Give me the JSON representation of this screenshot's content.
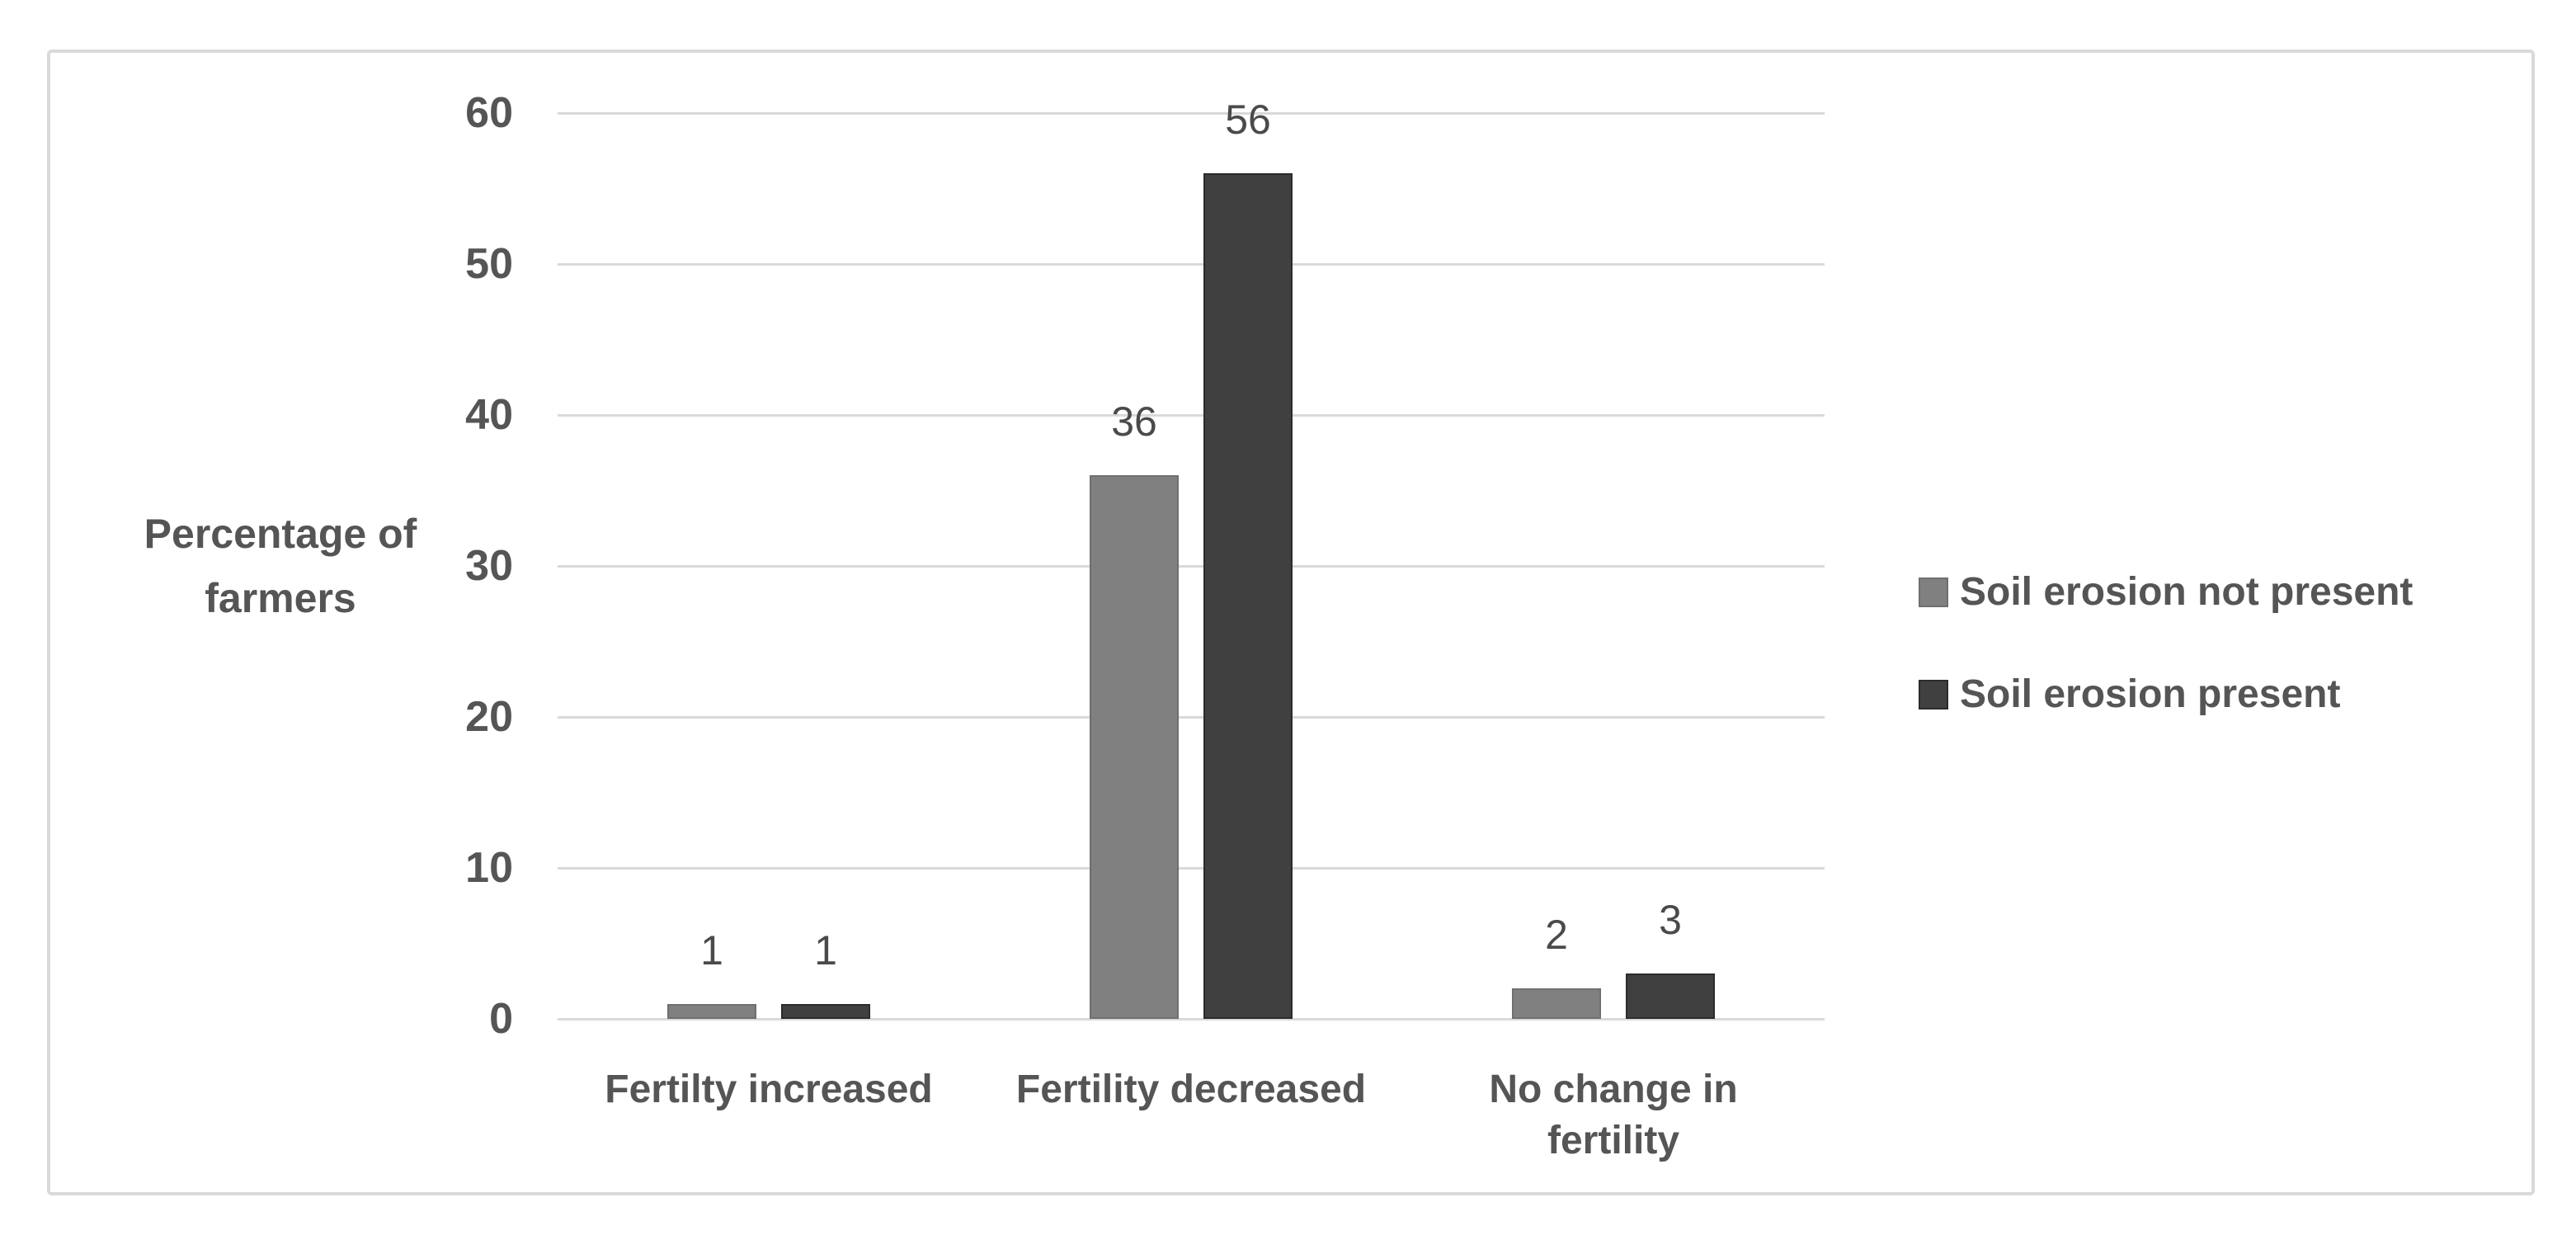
{
  "chart_data": {
    "type": "bar",
    "categories": [
      "Fertilty increased",
      "Fertility decreased",
      "No change in fertility"
    ],
    "series": [
      {
        "name": "Soil erosion not present",
        "values": [
          1,
          36,
          2
        ],
        "color": "#808080",
        "border_color": "#6f6f6f"
      },
      {
        "name": "Soil erosion present",
        "values": [
          1,
          56,
          3
        ],
        "color": "#404040",
        "border_color": "#2b2b2b"
      }
    ],
    "title": "",
    "xlabel": "",
    "ylabel": "Percentage of farmers",
    "yticks": [
      0,
      10,
      20,
      30,
      40,
      50,
      60
    ],
    "ylim": [
      0,
      60
    ],
    "grid": true,
    "gridline_color": "#d9d9d9",
    "data_labels": true,
    "legend_position": "right"
  }
}
